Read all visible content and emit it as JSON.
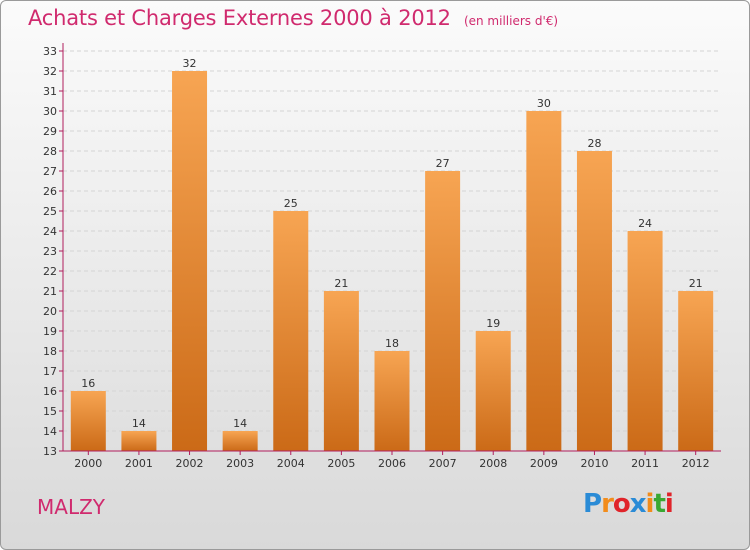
{
  "header": {
    "title": "Achats et Charges Externes 2000 à 2012",
    "subtitle": "(en milliers d'€)"
  },
  "footer": {
    "commune": "MALZY",
    "logo_letters": [
      {
        "ch": "P",
        "color": "#2a8bd6"
      },
      {
        "ch": "r",
        "color": "#f28c1b"
      },
      {
        "ch": "o",
        "color": "#e0242a"
      },
      {
        "ch": "x",
        "color": "#2a8bd6"
      },
      {
        "ch": "i",
        "color": "#f28c1b"
      },
      {
        "ch": "t",
        "color": "#3aa832"
      },
      {
        "ch": "i",
        "color": "#e0242a"
      }
    ]
  },
  "colors": {
    "bar_top": "#f7a553",
    "bar_bottom": "#cb6a17",
    "axis": "#b01d5c",
    "grid": "#d4d4d4",
    "text": "#333333"
  },
  "chart_data": {
    "type": "bar",
    "categories": [
      "2000",
      "2001",
      "2002",
      "2003",
      "2004",
      "2005",
      "2006",
      "2007",
      "2008",
      "2009",
      "2010",
      "2011",
      "2012"
    ],
    "values": [
      16,
      14,
      32,
      14,
      25,
      21,
      18,
      27,
      19,
      30,
      28,
      24,
      21
    ],
    "ylim": [
      13,
      33
    ],
    "yticks": [
      13,
      14,
      15,
      16,
      17,
      18,
      19,
      20,
      21,
      22,
      23,
      24,
      25,
      26,
      27,
      28,
      29,
      30,
      31,
      32,
      33
    ],
    "grid": true,
    "data_labels": true
  }
}
